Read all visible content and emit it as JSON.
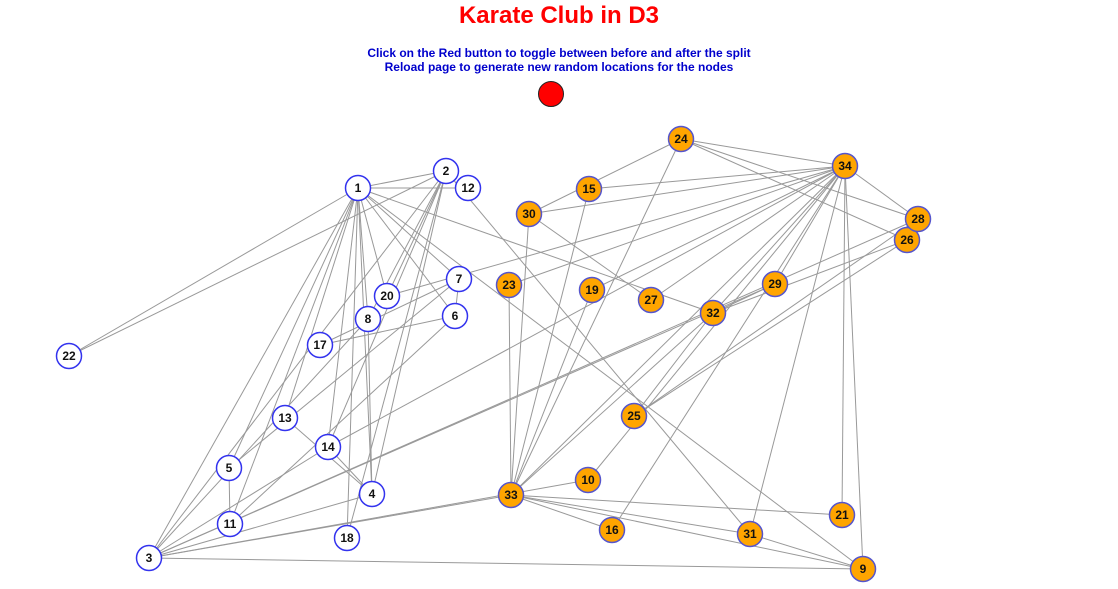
{
  "title": "Karate Club in D3",
  "instructions": [
    "Click on the Red button to toggle between before and after the split",
    "Reload page to generate new random locations for the nodes"
  ],
  "colors": {
    "title": "#ff0000",
    "instructions": "#0000cc",
    "toggle_button": "#ff0000",
    "group_a_fill": "#ffffff",
    "group_a_stroke": "#3333ee",
    "group_b_fill": "#ffa500",
    "group_b_stroke": "#5555cc",
    "edge": "#999999",
    "label": "#111111"
  },
  "nodes": [
    {
      "id": 1,
      "label": "1",
      "group": "a"
    },
    {
      "id": 2,
      "label": "2",
      "group": "a"
    },
    {
      "id": 3,
      "label": "3",
      "group": "a"
    },
    {
      "id": 4,
      "label": "4",
      "group": "a"
    },
    {
      "id": 5,
      "label": "5",
      "group": "a"
    },
    {
      "id": 6,
      "label": "6",
      "group": "a"
    },
    {
      "id": 7,
      "label": "7",
      "group": "a"
    },
    {
      "id": 8,
      "label": "8",
      "group": "a"
    },
    {
      "id": 9,
      "label": "9",
      "group": "b"
    },
    {
      "id": 10,
      "label": "10",
      "group": "b"
    },
    {
      "id": 11,
      "label": "11",
      "group": "a"
    },
    {
      "id": 12,
      "label": "12",
      "group": "a"
    },
    {
      "id": 13,
      "label": "13",
      "group": "a"
    },
    {
      "id": 14,
      "label": "14",
      "group": "a"
    },
    {
      "id": 15,
      "label": "15",
      "group": "b"
    },
    {
      "id": 16,
      "label": "16",
      "group": "b"
    },
    {
      "id": 17,
      "label": "17",
      "group": "a"
    },
    {
      "id": 18,
      "label": "18",
      "group": "a"
    },
    {
      "id": 19,
      "label": "19",
      "group": "b"
    },
    {
      "id": 20,
      "label": "20",
      "group": "a"
    },
    {
      "id": 21,
      "label": "21",
      "group": "b"
    },
    {
      "id": 22,
      "label": "22",
      "group": "a"
    },
    {
      "id": 23,
      "label": "23",
      "group": "b"
    },
    {
      "id": 24,
      "label": "24",
      "group": "b"
    },
    {
      "id": 25,
      "label": "25",
      "group": "b"
    },
    {
      "id": 26,
      "label": "26",
      "group": "b"
    },
    {
      "id": 27,
      "label": "27",
      "group": "b"
    },
    {
      "id": 28,
      "label": "28",
      "group": "b"
    },
    {
      "id": 29,
      "label": "29",
      "group": "b"
    },
    {
      "id": 30,
      "label": "30",
      "group": "b"
    },
    {
      "id": 31,
      "label": "31",
      "group": "b"
    },
    {
      "id": 32,
      "label": "32",
      "group": "b"
    },
    {
      "id": 33,
      "label": "33",
      "group": "b"
    },
    {
      "id": 34,
      "label": "34",
      "group": "b"
    }
  ],
  "edges": [
    [
      2,
      1
    ],
    [
      3,
      1
    ],
    [
      3,
      2
    ],
    [
      4,
      1
    ],
    [
      4,
      2
    ],
    [
      4,
      3
    ],
    [
      5,
      1
    ],
    [
      6,
      1
    ],
    [
      7,
      1
    ],
    [
      7,
      5
    ],
    [
      7,
      6
    ],
    [
      8,
      1
    ],
    [
      8,
      2
    ],
    [
      8,
      3
    ],
    [
      8,
      4
    ],
    [
      9,
      1
    ],
    [
      9,
      3
    ],
    [
      10,
      3
    ],
    [
      11,
      1
    ],
    [
      11,
      5
    ],
    [
      11,
      6
    ],
    [
      12,
      1
    ],
    [
      13,
      1
    ],
    [
      13,
      4
    ],
    [
      14,
      1
    ],
    [
      14,
      2
    ],
    [
      14,
      3
    ],
    [
      14,
      4
    ],
    [
      17,
      6
    ],
    [
      17,
      7
    ],
    [
      18,
      1
    ],
    [
      18,
      2
    ],
    [
      20,
      1
    ],
    [
      20,
      2
    ],
    [
      22,
      1
    ],
    [
      22,
      2
    ],
    [
      26,
      24
    ],
    [
      26,
      25
    ],
    [
      28,
      3
    ],
    [
      28,
      24
    ],
    [
      28,
      25
    ],
    [
      29,
      3
    ],
    [
      30,
      24
    ],
    [
      30,
      27
    ],
    [
      31,
      2
    ],
    [
      31,
      9
    ],
    [
      32,
      1
    ],
    [
      32,
      25
    ],
    [
      32,
      26
    ],
    [
      32,
      29
    ],
    [
      33,
      3
    ],
    [
      33,
      9
    ],
    [
      33,
      15
    ],
    [
      33,
      16
    ],
    [
      33,
      19
    ],
    [
      33,
      21
    ],
    [
      33,
      23
    ],
    [
      33,
      24
    ],
    [
      33,
      30
    ],
    [
      33,
      31
    ],
    [
      33,
      32
    ],
    [
      34,
      9
    ],
    [
      34,
      10
    ],
    [
      34,
      14
    ],
    [
      34,
      15
    ],
    [
      34,
      16
    ],
    [
      34,
      19
    ],
    [
      34,
      20
    ],
    [
      34,
      21
    ],
    [
      34,
      23
    ],
    [
      34,
      24
    ],
    [
      34,
      27
    ],
    [
      34,
      28
    ],
    [
      34,
      29
    ],
    [
      34,
      30
    ],
    [
      34,
      31
    ],
    [
      34,
      32
    ],
    [
      34,
      33
    ]
  ]
}
